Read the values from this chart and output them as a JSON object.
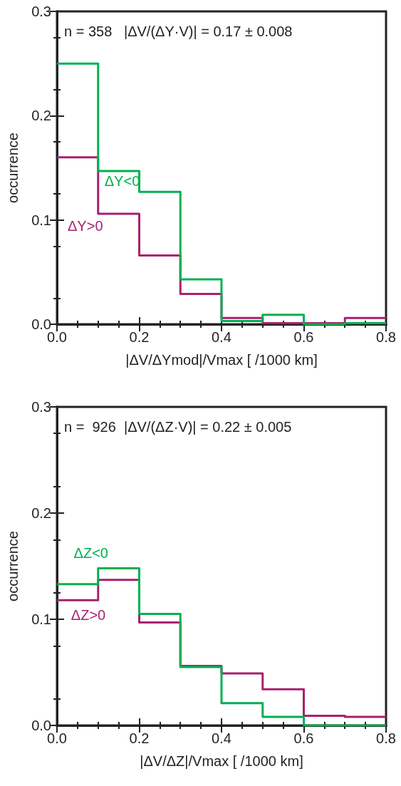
{
  "chart_data": [
    {
      "type": "histogram",
      "ylabel": "occurrence",
      "xlabel": "|ΔV/ΔYmod|/Vmax [ /1000 km]",
      "annotations": [
        "n = 358   |ΔV/(ΔY·V)| = 0.17 ± 0.008"
      ],
      "bins": [
        0,
        0.1,
        0.2,
        0.3,
        0.4,
        0.5,
        0.6,
        0.7,
        0.8
      ],
      "series": [
        {
          "name": "ΔY<0",
          "color": "#00b050",
          "values": [
            0.25,
            0.147,
            0.127,
            0.043,
            0.003,
            0.009,
            0.0,
            0.001
          ]
        },
        {
          "name": "ΔY>0",
          "color": "#a8206e",
          "values": [
            0.16,
            0.106,
            0.066,
            0.029,
            0.006,
            0.001,
            0.001,
            0.006
          ]
        }
      ],
      "xlim": [
        0,
        0.8
      ],
      "xticks": [
        {
          "value": 0,
          "label": "0.0"
        },
        0.2,
        0.4,
        0.6,
        0.8
      ],
      "ylim": [
        0,
        0.3
      ],
      "yticks": [
        {
          "value": 0,
          "label": "0.0"
        },
        0.1,
        0.2,
        0.3
      ],
      "grid": false,
      "legend": false
    },
    {
      "type": "histogram",
      "ylabel": "occurrence",
      "xlabel": "|ΔV/ΔZ|/Vmax [ /1000 km]",
      "annotations": [
        "n =  926  |ΔV/(ΔZ·V)| = 0.22 ± 0.005"
      ],
      "bins": [
        0,
        0.1,
        0.2,
        0.3,
        0.4,
        0.5,
        0.6,
        0.7,
        0.8
      ],
      "series": [
        {
          "name": "ΔZ<0",
          "color": "#00b050",
          "values": [
            0.133,
            0.148,
            0.105,
            0.055,
            0.021,
            0.008,
            0.0,
            0.0
          ]
        },
        {
          "name": "ΔZ>0",
          "color": "#a8206e",
          "values": [
            0.118,
            0.137,
            0.097,
            0.056,
            0.049,
            0.034,
            0.009,
            0.008
          ]
        }
      ],
      "xlim": [
        0,
        0.8
      ],
      "xticks": [
        {
          "value": 0,
          "label": "0.0"
        },
        0.2,
        0.4,
        0.6,
        0.8
      ],
      "ylim": [
        0,
        0.3
      ],
      "yticks": [
        {
          "value": 0,
          "label": "0.0"
        },
        0.1,
        0.2,
        0.3
      ],
      "grid": false,
      "legend": false
    }
  ]
}
